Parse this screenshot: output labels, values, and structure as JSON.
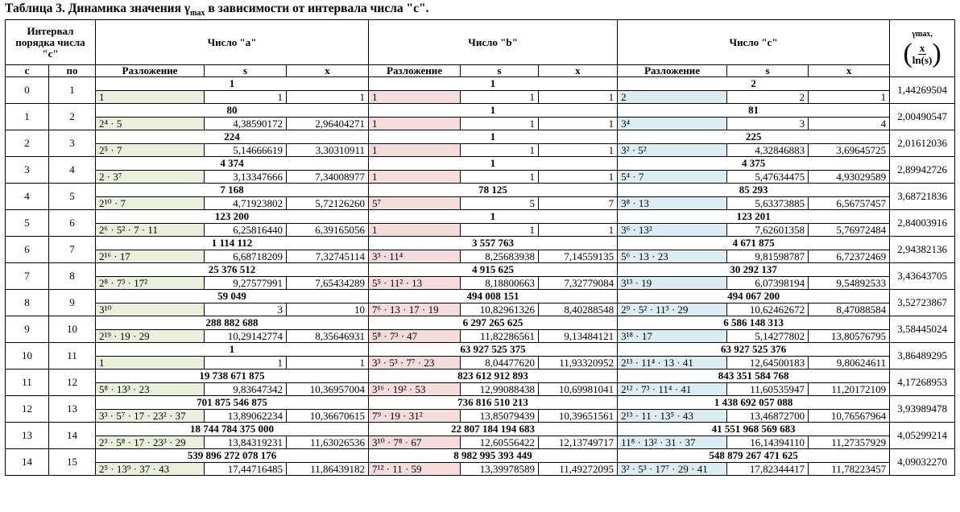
{
  "title": {
    "main": "Таблица 3. Динамика значения γ",
    "sub": "max",
    "rest": " в зависимости от интервала числа \"c\"."
  },
  "headers": {
    "interval": "Интервал порядка числа \"c\"",
    "a": "Число \"a\"",
    "b": "Число \"b\"",
    "c": "Число \"c\"",
    "gamma_top": "γmax,",
    "gamma_num": "x",
    "gamma_den": "ln(s)",
    "from": "c",
    "to": "по",
    "decomp": "Разложение",
    "s": "s",
    "x": "x"
  },
  "rows": [
    {
      "from": "0",
      "to": "1",
      "a": "1",
      "a_d": "1",
      "a_s": "1",
      "a_x": "1",
      "b": "1",
      "b_d": "1",
      "b_s": "1",
      "b_x": "1",
      "c": "2",
      "c_d": "2",
      "c_s": "2",
      "c_x": "1",
      "g": "1,44269504"
    },
    {
      "from": "1",
      "to": "2",
      "a": "80",
      "a_d": "2⁴ · 5",
      "a_s": "4,38590172",
      "a_x": "2,96404271",
      "b": "1",
      "b_d": "1",
      "b_s": "1",
      "b_x": "1",
      "c": "81",
      "c_d": "3⁴",
      "c_s": "3",
      "c_x": "4",
      "g": "2,00490547"
    },
    {
      "from": "2",
      "to": "3",
      "a": "224",
      "a_d": "2⁵ · 7",
      "a_s": "5,14666619",
      "a_x": "3,30310911",
      "b": "1",
      "b_d": "1",
      "b_s": "1",
      "b_x": "1",
      "c": "225",
      "c_d": "3² · 5²",
      "c_s": "4,32846883",
      "c_x": "3,69645725",
      "g": "2,01612036"
    },
    {
      "from": "3",
      "to": "4",
      "a": "4 374",
      "a_d": "2 · 3⁷",
      "a_s": "3,13347666",
      "a_x": "7,34008977",
      "b": "1",
      "b_d": "1",
      "b_s": "1",
      "b_x": "1",
      "c": "4 375",
      "c_d": "5⁴ · 7",
      "c_s": "5,47634475",
      "c_x": "4,93029589",
      "g": "2,89942726"
    },
    {
      "from": "4",
      "to": "5",
      "a": "7 168",
      "a_d": "2¹⁰ · 7",
      "a_s": "4,71923802",
      "a_x": "5,72126260",
      "b": "78 125",
      "b_d": "5⁷",
      "b_s": "5",
      "b_x": "7",
      "c": "85 293",
      "c_d": "3⁸ · 13",
      "c_s": "5,63373885",
      "c_x": "6,56757457",
      "g": "3,68721836"
    },
    {
      "from": "5",
      "to": "6",
      "a": "123 200",
      "a_d": "2⁶ · 5² · 7 · 11",
      "a_s": "6,25816440",
      "a_x": "6,39165056",
      "b": "1",
      "b_d": "1",
      "b_s": "1",
      "b_x": "1",
      "c": "123 201",
      "c_d": "3⁶ · 13²",
      "c_s": "7,62601358",
      "c_x": "5,76972484",
      "g": "2,84003916"
    },
    {
      "from": "6",
      "to": "7",
      "a": "1 114 112",
      "a_d": "2¹⁶ · 17",
      "a_s": "6,68718209",
      "a_x": "7,32745114",
      "b": "3 557 763",
      "b_d": "3³ · 11⁴",
      "b_s": "8,25683938",
      "b_x": "7,14559135",
      "c": "4 671 875",
      "c_d": "5⁶ · 13 · 23",
      "c_s": "9,81598787",
      "c_x": "6,72372469",
      "g": "2,94382136"
    },
    {
      "from": "7",
      "to": "8",
      "a": "25 376 512",
      "a_d": "2⁸ · 7³ · 17²",
      "a_s": "9,27577991",
      "a_x": "7,65434289",
      "b": "4 915 625",
      "b_d": "5⁵ · 11² · 13",
      "b_s": "8,18800663",
      "b_x": "7,32779084",
      "c": "30 292 137",
      "c_d": "3¹³ · 19",
      "c_s": "6,07398194",
      "c_x": "9,54892533",
      "g": "3,43643705"
    },
    {
      "from": "8",
      "to": "9",
      "a": "59 049",
      "a_d": "3¹⁰",
      "a_s": "3",
      "a_x": "10",
      "b": "494 008 151",
      "b_d": "7⁶ · 13 · 17 · 19",
      "b_s": "10,82961326",
      "b_x": "8,40288548",
      "c": "494 067 200",
      "c_d": "2⁹ · 5² · 11³ · 29",
      "c_s": "10,62462672",
      "c_x": "8,47088584",
      "g": "3,52723867"
    },
    {
      "from": "9",
      "to": "10",
      "a": "288 882 688",
      "a_d": "2¹⁹ · 19 · 29",
      "a_s": "10,29142774",
      "a_x": "8,35646931",
      "b": "6 297 265 625",
      "b_d": "5⁸ · 7³ · 47",
      "b_s": "11,82286561",
      "b_x": "9,13484121",
      "c": "6 586 148 313",
      "c_d": "3¹⁸ · 17",
      "c_s": "5,14277802",
      "c_x": "13,80576795",
      "g": "3,58445024"
    },
    {
      "from": "10",
      "to": "11",
      "a": "1",
      "a_d": "1",
      "a_s": "1",
      "a_x": "1",
      "b": "63 927 525 375",
      "b_d": "3³ · 5³ · 7⁷ · 23",
      "b_s": "8,04477620",
      "b_x": "11,93320952",
      "c": "63 927 525 376",
      "c_d": "2¹³ · 11⁴ · 13 · 41",
      "c_s": "12,64500183",
      "c_x": "9,80624611",
      "g": "3,86489295"
    },
    {
      "from": "11",
      "to": "12",
      "a": "19 738 671 875",
      "a_d": "5⁸ · 13³ · 23",
      "a_s": "9,83647342",
      "a_x": "10,36957004",
      "b": "823 612 912 893",
      "b_d": "3¹⁶ · 19² · 53",
      "b_s": "12,99088438",
      "b_x": "10,69981041",
      "c": "843 351 584 768",
      "c_d": "2¹² · 7³ · 11⁴ · 41",
      "c_s": "11,60535947",
      "c_x": "11,20172109",
      "g": "4,17268953"
    },
    {
      "from": "12",
      "to": "13",
      "a": "701 875 546 875",
      "a_d": "3³ · 5⁷ · 17 · 23² · 37",
      "a_s": "13,89062234",
      "a_x": "10,36670615",
      "b": "736 816 510 213",
      "b_d": "7⁹ · 19 · 31²",
      "b_s": "13,85079439",
      "b_x": "10,39651561",
      "c": "1 438 692 057 088",
      "c_d": "2¹³ · 11 · 13⁵ · 43",
      "c_s": "13,46872700",
      "c_x": "10,76567964",
      "g": "3,93989478"
    },
    {
      "from": "13",
      "to": "14",
      "a": "18 744 784 375 000",
      "a_d": "2³ · 5⁸ · 17 · 23³ · 29",
      "a_s": "13,84319231",
      "a_x": "11,63026536",
      "b": "22 807 184 194 683",
      "b_d": "3¹⁰ · 7⁸ · 67",
      "b_s": "12,60556422",
      "b_x": "12,13749717",
      "c": "41 551 968 569 683",
      "c_d": "11⁸ · 13² · 31 · 37",
      "c_s": "16,14394110",
      "c_x": "11,27357929",
      "g": "4,05299214"
    },
    {
      "from": "14",
      "to": "15",
      "a": "539 896 272 078 176",
      "a_d": "2⁵ · 13⁹ · 37 · 43",
      "a_s": "17,44716485",
      "a_x": "11,86439182",
      "b": "8 982 995 393 449",
      "b_d": "7¹² · 11 · 59",
      "b_s": "13,39978589",
      "b_x": "11,49272095",
      "c": "548 879 267 471 625",
      "c_d": "3² · 5³ · 17⁷ · 29 · 41",
      "c_s": "17,82344417",
      "c_x": "11,78223457",
      "g": "4,09032270"
    }
  ]
}
